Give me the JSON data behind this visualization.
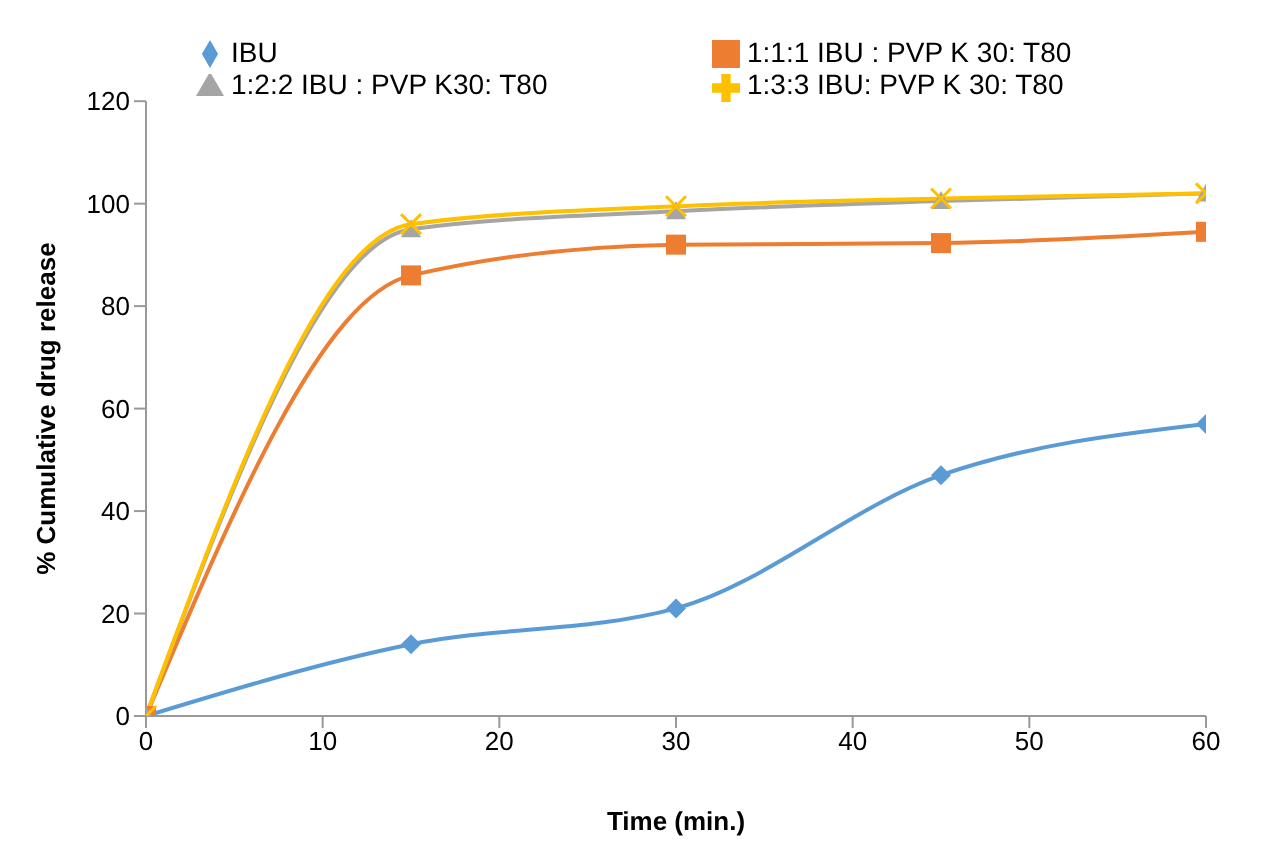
{
  "chart_data": {
    "type": "line",
    "xlabel": "Time (min.)",
    "ylabel": "% Cumulative drug release",
    "x": [
      0,
      15,
      30,
      45,
      60
    ],
    "series": [
      {
        "name": "IBU",
        "color": "#5b9bd5",
        "marker": "diamond",
        "values": [
          0,
          14,
          21,
          47,
          57
        ]
      },
      {
        "name": "1:1:1 IBU : PVP K 30: T80",
        "color": "#ed7d31",
        "marker": "square",
        "values": [
          0,
          86,
          92,
          92.3,
          94.5
        ]
      },
      {
        "name": "1:2:2 IBU : PVP K30: T80",
        "color": "#a5a5a5",
        "marker": "triangle",
        "values": [
          0,
          95,
          98.5,
          100.5,
          102
        ]
      },
      {
        "name": "1:3:3 IBU: PVP K 30: T80",
        "color": "#ffc000",
        "marker": "cross",
        "values": [
          0,
          96,
          99.5,
          101,
          102
        ]
      }
    ],
    "xlim": [
      0,
      60
    ],
    "xticks": [
      0,
      10,
      20,
      30,
      40,
      50,
      60
    ],
    "ylim": [
      0,
      120
    ],
    "yticks": [
      0,
      20,
      40,
      60,
      80,
      100,
      120
    ],
    "grid": false,
    "legend": "top"
  }
}
